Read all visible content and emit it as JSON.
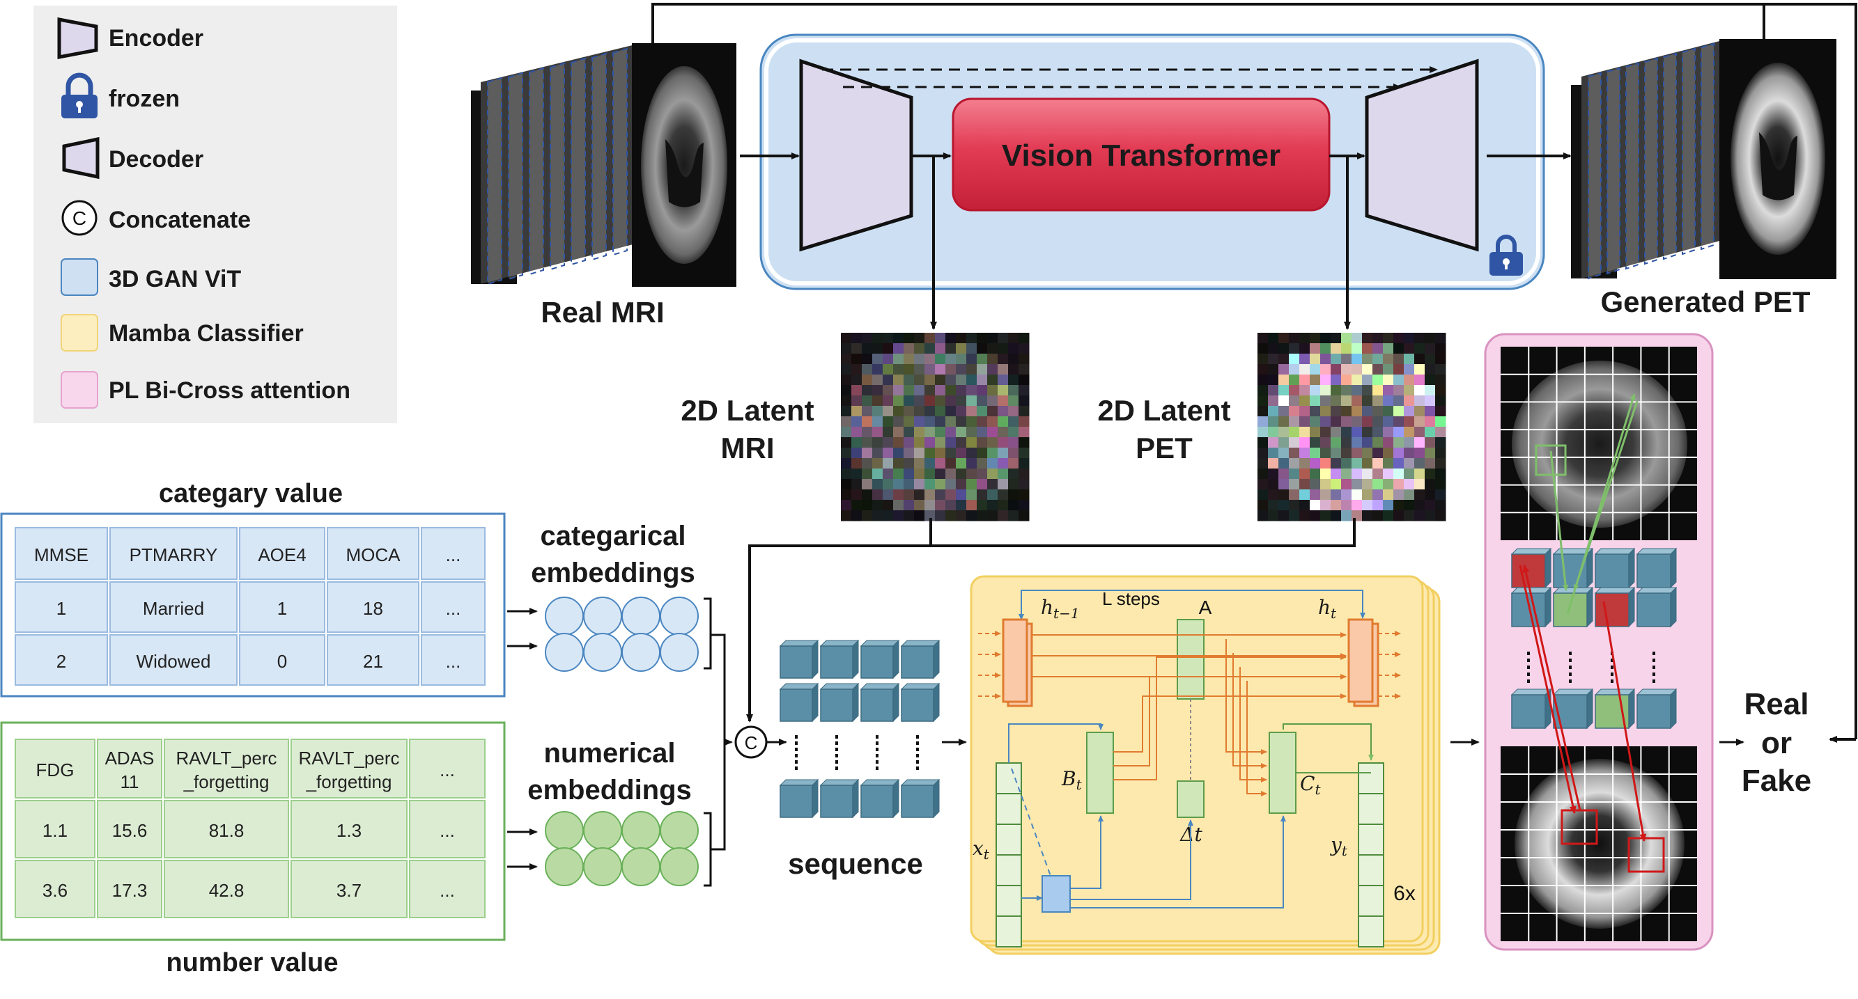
{
  "legend": {
    "items": [
      {
        "icon": "encoder-trapezoid-icon",
        "label": "Encoder"
      },
      {
        "icon": "lock-icon",
        "label": "frozen"
      },
      {
        "icon": "decoder-trapezoid-icon",
        "label": "Decoder"
      },
      {
        "icon": "concatenate-circle-icon",
        "label": "Concatenate"
      },
      {
        "icon": "blue-box-icon",
        "label": "3D GAN ViT"
      },
      {
        "icon": "yellow-box-icon",
        "label": "Mamba Classifier"
      },
      {
        "icon": "pink-box-icon",
        "label": "PL Bi-Cross attention"
      }
    ]
  },
  "gan": {
    "real_mri": "Real MRI",
    "vit": "Vision  Transformer",
    "generated_pet": "Generated PET",
    "latent_mri": [
      "2D Latent",
      "MRI"
    ],
    "latent_pet": [
      "2D Latent",
      "PET"
    ]
  },
  "category_table": {
    "title": "categary value",
    "headers": [
      "MMSE",
      "PTMARRY",
      "AOE4",
      "MOCA",
      "..."
    ],
    "rows": [
      [
        "1",
        "Married",
        "1",
        "18",
        "..."
      ],
      [
        "2",
        "Widowed",
        "0",
        "21",
        "..."
      ]
    ]
  },
  "number_table": {
    "title": "number value",
    "headers": [
      [
        "FDG"
      ],
      [
        "ADAS",
        "11"
      ],
      [
        "RAVLT_perc",
        "_forgetting"
      ],
      [
        "RAVLT_perc",
        "_forgetting"
      ],
      [
        "..."
      ]
    ],
    "rows": [
      [
        "1.1",
        "15.6",
        "81.8",
        "1.3",
        "..."
      ],
      [
        "3.6",
        "17.3",
        "42.8",
        "3.7",
        "..."
      ]
    ]
  },
  "embeddings": {
    "categorical": [
      "categarical",
      "embeddings"
    ],
    "numerical": [
      "numerical",
      "embeddings"
    ],
    "concat_symbol": "C",
    "sequence": "sequence"
  },
  "mamba": {
    "l_steps": "L steps",
    "h_prev": "h",
    "h_prev_sub": "t−1",
    "h_t": "h",
    "h_t_sub": "t",
    "a": "A",
    "b_t": "B",
    "c_t": "C",
    "delta_t": "Δt",
    "x_t": "x",
    "y_t": "y",
    "t_sub": "t",
    "repeat": "6x"
  },
  "output": {
    "label": [
      "Real",
      "or",
      "Fake"
    ]
  },
  "colors": {
    "blue_panel": "#d3e4f5",
    "yellow_panel": "#fdeab0",
    "pink_panel": "#f7d4ea",
    "vit_red": "#e23b54",
    "trapezoid": "#ddd8ec",
    "cube_blue": "#5b8fa8",
    "cube_green": "#8fbf7a",
    "cube_red": "#c0393b",
    "arrow_orange": "#e07b30",
    "arrow_blue": "#4a86c0"
  }
}
